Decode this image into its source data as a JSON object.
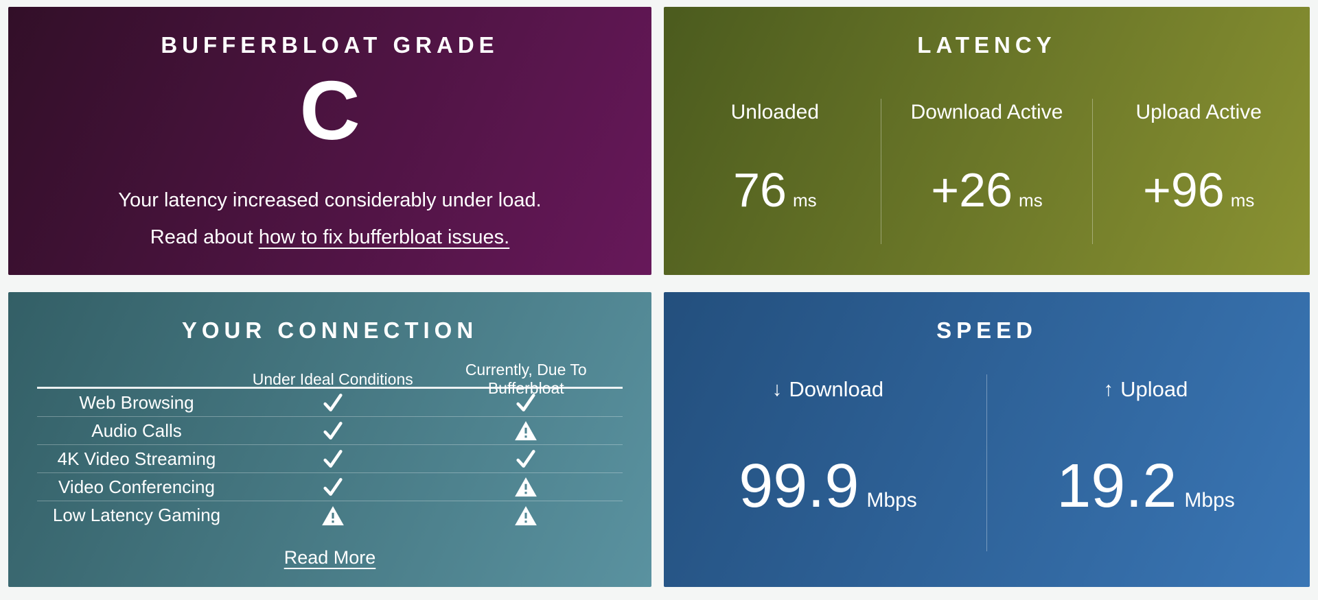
{
  "page": {
    "background": "#f4f6f5",
    "text_color": "#ffffff"
  },
  "grade_card": {
    "title": "BUFFERBLOAT GRADE",
    "grade": "C",
    "description": "Your latency increased considerably under load.",
    "read_about_prefix": "Read about",
    "link_text": "how to fix bufferbloat issues.",
    "bg_from": "#320f28",
    "bg_to": "#67185a"
  },
  "latency_card": {
    "title": "LATENCY",
    "columns": [
      {
        "label": "Unloaded",
        "value": "76",
        "unit": "ms"
      },
      {
        "label": "Download Active",
        "value": "+26",
        "unit": "ms"
      },
      {
        "label": "Upload Active",
        "value": "+96",
        "unit": "ms"
      }
    ],
    "bg_from": "#4b5b1e",
    "bg_to": "#8a9232"
  },
  "connection_card": {
    "title": "YOUR CONNECTION",
    "col_headers": [
      "Under Ideal Conditions",
      "Currently, Due To Bufferbloat"
    ],
    "rows": [
      {
        "label": "Web Browsing",
        "ideal": "check",
        "current": "check"
      },
      {
        "label": "Audio Calls",
        "ideal": "check",
        "current": "warning"
      },
      {
        "label": "4K Video Streaming",
        "ideal": "check",
        "current": "check"
      },
      {
        "label": "Video Conferencing",
        "ideal": "check",
        "current": "warning"
      },
      {
        "label": "Low Latency Gaming",
        "ideal": "warning",
        "current": "warning"
      }
    ],
    "read_more": "Read More",
    "bg_from": "#335f66",
    "bg_to": "#5a92a0"
  },
  "speed_card": {
    "title": "SPEED",
    "columns": [
      {
        "arrow": "↓",
        "label": "Download",
        "value": "99.9",
        "unit": "Mbps"
      },
      {
        "arrow": "↑",
        "label": "Upload",
        "value": "19.2",
        "unit": "Mbps"
      }
    ],
    "bg_from": "#234f7d",
    "bg_to": "#3a76b5"
  }
}
